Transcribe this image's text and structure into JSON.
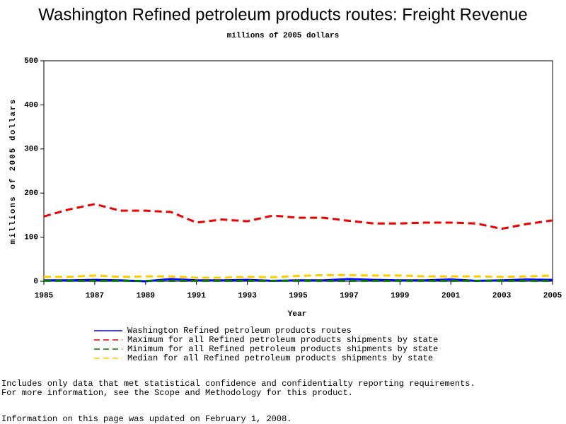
{
  "chart_data": {
    "type": "line",
    "title": "Washington Refined petroleum products routes: Freight Revenue",
    "subtitle": "millions of 2005 dollars",
    "x_label": "Year",
    "y_label": "millions of 2005 dollars",
    "x": [
      1985,
      1986,
      1987,
      1988,
      1989,
      1990,
      1991,
      1992,
      1993,
      1994,
      1995,
      1996,
      1997,
      1998,
      1999,
      2000,
      2001,
      2002,
      2003,
      2004,
      2005
    ],
    "xlim": [
      1985,
      2005
    ],
    "xticks": [
      1985,
      1987,
      1989,
      1991,
      1993,
      1995,
      1997,
      1999,
      2001,
      2003,
      2005
    ],
    "ylim": [
      0,
      500
    ],
    "yticks": [
      0,
      100,
      200,
      300,
      400,
      500
    ],
    "grid": false,
    "series": [
      {
        "name": "Washington Refined petroleum products routes",
        "color": "#0000ff",
        "dashed": false,
        "values": [
          2,
          2,
          3,
          2,
          0,
          5,
          2,
          2,
          3,
          1,
          2,
          2,
          5,
          3,
          2,
          2,
          4,
          1,
          2,
          4,
          3
        ]
      },
      {
        "name": "Maximum for all Refined petroleum products shipments by state",
        "color": "#ee0000",
        "dashed": true,
        "values": [
          147,
          163,
          175,
          160,
          160,
          157,
          133,
          140,
          136,
          149,
          144,
          144,
          137,
          131,
          131,
          133,
          133,
          131,
          119,
          130,
          138
        ]
      },
      {
        "name": "Minimum for all Refined petroleum products shipments by state",
        "color": "#007700",
        "dashed": true,
        "values": [
          1,
          1,
          1,
          1,
          1,
          1,
          1,
          1,
          1,
          1,
          1,
          1,
          1,
          1,
          1,
          1,
          1,
          1,
          1,
          1,
          1
        ]
      },
      {
        "name": "Median for all Refined petroleum products shipments by state",
        "color": "#ffcc00",
        "dashed": true,
        "values": [
          10,
          10,
          13,
          10,
          11,
          11,
          8,
          8,
          10,
          9,
          12,
          14,
          14,
          13,
          13,
          11,
          11,
          11,
          10,
          11,
          13
        ]
      }
    ],
    "notes": [
      "Includes only data that met statistical confidence and confidentialty reporting requirements.",
      "For more information, see the Scope and Methodology for this product.",
      "Information on this page was updated on February 1, 2008."
    ]
  }
}
